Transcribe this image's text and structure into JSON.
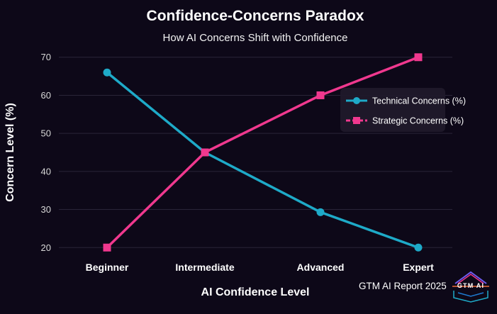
{
  "chart_data": {
    "type": "line",
    "title": "Confidence-Concerns Paradox",
    "subtitle": "How AI Concerns Shift with Confidence",
    "xlabel": "AI Confidence Level",
    "ylabel": "Concern Level (%)",
    "categories": [
      "Beginner",
      "Intermediate",
      "Advanced",
      "Expert"
    ],
    "yticks": [
      20,
      30,
      40,
      50,
      60,
      70
    ],
    "ylim": [
      18,
      72
    ],
    "grid": true,
    "legend_position": "right",
    "series": [
      {
        "name": "Technical Concerns (%)",
        "values": [
          66,
          45,
          29.3,
          20
        ],
        "color": "#1eaac8",
        "marker": "circle",
        "line": "solid"
      },
      {
        "name": "Strategic Concerns (%)",
        "values": [
          20,
          45,
          60,
          70
        ],
        "color": "#f0388e",
        "marker": "square",
        "line": "solid"
      }
    ]
  },
  "footer": {
    "source": "GTM AI Report 2025",
    "logo_text": "GTM AI"
  },
  "colors": {
    "background": "#0d0818",
    "grid": "#2a2438"
  }
}
